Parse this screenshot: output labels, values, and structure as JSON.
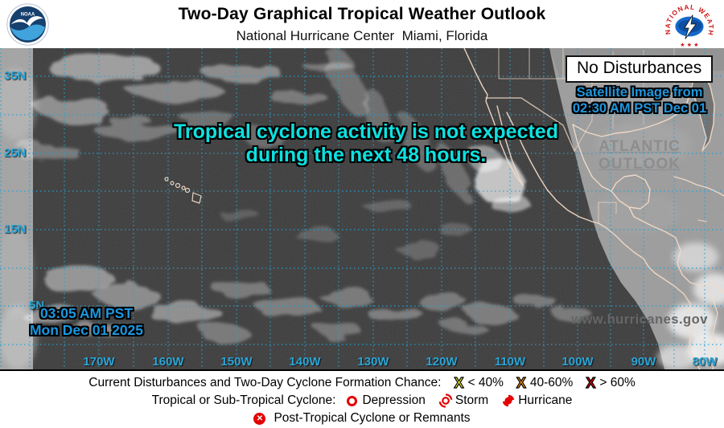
{
  "header": {
    "title": "Two-Day Graphical Tropical Weather Outlook",
    "subtitle": "National Hurricane Center  Miami, Florida",
    "noaa_logo": "NOAA",
    "nws_logo": "NATIONAL WEATHER SERVICE"
  },
  "map": {
    "status_box": "No Disturbances",
    "satellite_caption_line1": "Satellite Image from",
    "satellite_caption_line2": "02:30 AM PST Dec 01",
    "atlantic_link_line1": "ATLANTIC",
    "atlantic_link_line2": "OUTLOOK",
    "message_line1": "Tropical cyclone activity is not expected",
    "message_line2": "during the next 48 hours.",
    "timestamp_line1": "03:05 AM PST",
    "timestamp_line2": "Mon Dec 01 2025",
    "website": "www.hurricanes.gov",
    "lat_labels": [
      "35N",
      "25N",
      "15N",
      "5N"
    ],
    "lon_labels": [
      "170W",
      "160W",
      "150W",
      "140W",
      "130W",
      "120W",
      "110W",
      "100W",
      "90W",
      "80W"
    ],
    "grid_color": "#2aa5d6",
    "message_color": "#0ee0e0",
    "timestamp_color": "#1a97e0",
    "caption_color": "#1f96dc"
  },
  "legend": {
    "line1_label": "Current Disturbances and Two-Day Cyclone Formation Chance:",
    "chances": [
      {
        "symbol": "X",
        "color": "#f6f632",
        "label": "< 40%"
      },
      {
        "symbol": "X",
        "color": "#ff9013",
        "label": "40-60%"
      },
      {
        "symbol": "X",
        "color": "#e30000",
        "label": "> 60%"
      }
    ],
    "line2_label": "Tropical or Sub-Tropical Cyclone:",
    "cyclone_types": [
      {
        "label": "Depression"
      },
      {
        "label": "Storm"
      },
      {
        "label": "Hurricane"
      }
    ],
    "line3_label": "Post-Tropical Cyclone or Remnants",
    "symbol_red": "#e30000"
  }
}
